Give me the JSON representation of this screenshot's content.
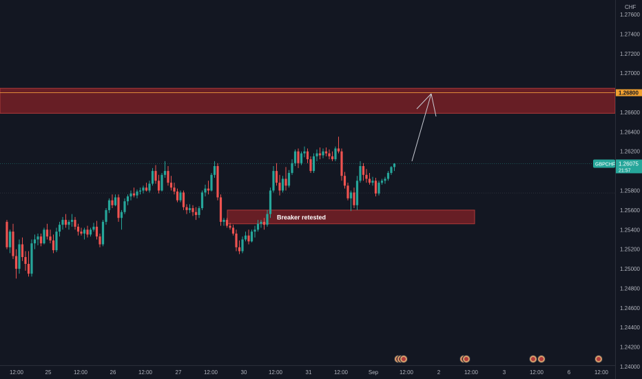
{
  "chart_data": {
    "type": "candlestick",
    "symbol": "GBPCHF",
    "currency": "CHF",
    "price_label": "1.26075",
    "countdown": "21:57",
    "resistance_label": "1.26800",
    "ylim": [
      1.24,
      1.278
    ],
    "y_ticks": [
      "1.27600",
      "1.27400",
      "1.27200",
      "1.27000",
      "1.26600",
      "1.26400",
      "1.26200",
      "1.25800",
      "1.25600",
      "1.25400",
      "1.25200",
      "1.25000",
      "1.24800",
      "1.24600",
      "1.24400",
      "1.24200",
      "1.24000"
    ],
    "x_ticks": [
      "12:00",
      "25",
      "12:00",
      "26",
      "12:00",
      "27",
      "12:00",
      "30",
      "12:00",
      "31",
      "12:00",
      "Sep",
      "12:00",
      "2",
      "12:00",
      "3",
      "12:00",
      "6",
      "12:00"
    ],
    "zones": [
      {
        "kind": "resistance",
        "low": 1.2659,
        "high": 1.26845,
        "line": 1.268
      },
      {
        "kind": "breaker",
        "low": 1.2546,
        "high": 1.256,
        "label": "Breaker retested"
      }
    ],
    "reference_lines": [
      1.26075,
      1.25775
    ],
    "projection": [
      {
        "index": 120,
        "price": 1.261
      },
      {
        "index": 132,
        "price": 1.2679
      }
    ],
    "colors": {
      "up": "#26a69a",
      "down": "#ef5350",
      "zone_fill": "#6b1f26",
      "zone_border": "#b23a3a",
      "price_tag": "#26a69a",
      "resistance_tag": "#f0a030",
      "projection": "#c9ccd4"
    },
    "candles": [
      [
        1.2548,
        1.255,
        1.252,
        1.2522
      ],
      [
        1.2522,
        1.254,
        1.2516,
        1.2538
      ],
      [
        1.2538,
        1.2546,
        1.251,
        1.2513
      ],
      [
        1.2513,
        1.252,
        1.249,
        1.25
      ],
      [
        1.25,
        1.253,
        1.2495,
        1.2525
      ],
      [
        1.2525,
        1.2532,
        1.2508,
        1.2512
      ],
      [
        1.2512,
        1.2518,
        1.2498,
        1.2505
      ],
      [
        1.2505,
        1.2518,
        1.2492,
        1.2495
      ],
      [
        1.2495,
        1.253,
        1.2492,
        1.2526
      ],
      [
        1.2526,
        1.2535,
        1.252,
        1.253
      ],
      [
        1.253,
        1.2536,
        1.2524,
        1.2533
      ],
      [
        1.2533,
        1.2536,
        1.2523,
        1.2526
      ],
      [
        1.2526,
        1.2542,
        1.2525,
        1.254
      ],
      [
        1.254,
        1.2546,
        1.253,
        1.2533
      ],
      [
        1.2533,
        1.254,
        1.2526,
        1.2529
      ],
      [
        1.2529,
        1.2535,
        1.2516,
        1.2519
      ],
      [
        1.2519,
        1.2542,
        1.2517,
        1.2538
      ],
      [
        1.2538,
        1.2548,
        1.2533,
        1.2545
      ],
      [
        1.2545,
        1.2553,
        1.254,
        1.255
      ],
      [
        1.255,
        1.2556,
        1.2542,
        1.2545
      ],
      [
        1.2545,
        1.255,
        1.254,
        1.2548
      ],
      [
        1.2548,
        1.2556,
        1.2543,
        1.255
      ],
      [
        1.255,
        1.2553,
        1.254,
        1.2543
      ],
      [
        1.2543,
        1.2546,
        1.2534,
        1.2538
      ],
      [
        1.2538,
        1.2542,
        1.2534,
        1.2536
      ],
      [
        1.2536,
        1.2542,
        1.253,
        1.254
      ],
      [
        1.254,
        1.2544,
        1.2532,
        1.2535
      ],
      [
        1.2535,
        1.2542,
        1.2533,
        1.254
      ],
      [
        1.254,
        1.2547,
        1.2538,
        1.2543
      ],
      [
        1.2543,
        1.2549,
        1.253,
        1.2533
      ],
      [
        1.2533,
        1.2536,
        1.2522,
        1.2525
      ],
      [
        1.2525,
        1.255,
        1.2523,
        1.2548
      ],
      [
        1.2548,
        1.2562,
        1.2545,
        1.256
      ],
      [
        1.256,
        1.2572,
        1.2557,
        1.257
      ],
      [
        1.257,
        1.2576,
        1.2562,
        1.2565
      ],
      [
        1.2565,
        1.2576,
        1.2564,
        1.2573
      ],
      [
        1.2573,
        1.2576,
        1.2548,
        1.2552
      ],
      [
        1.2552,
        1.256,
        1.254,
        1.2558
      ],
      [
        1.2558,
        1.2572,
        1.2556,
        1.2569
      ],
      [
        1.2569,
        1.2576,
        1.2565,
        1.2574
      ],
      [
        1.2574,
        1.258,
        1.257,
        1.2577
      ],
      [
        1.2577,
        1.2583,
        1.2573,
        1.2575
      ],
      [
        1.2575,
        1.2581,
        1.2572,
        1.2579
      ],
      [
        1.2579,
        1.2583,
        1.2576,
        1.258
      ],
      [
        1.258,
        1.2585,
        1.2577,
        1.2583
      ],
      [
        1.2583,
        1.2588,
        1.2579,
        1.258
      ],
      [
        1.258,
        1.259,
        1.2578,
        1.2587
      ],
      [
        1.2587,
        1.2603,
        1.2585,
        1.26
      ],
      [
        1.26,
        1.2606,
        1.2587,
        1.259
      ],
      [
        1.259,
        1.2596,
        1.2577,
        1.258
      ],
      [
        1.258,
        1.2598,
        1.2579,
        1.2596
      ],
      [
        1.2596,
        1.261,
        1.2593,
        1.26
      ],
      [
        1.26,
        1.2605,
        1.2585,
        1.2588
      ],
      [
        1.2588,
        1.2595,
        1.258,
        1.2583
      ],
      [
        1.2583,
        1.2588,
        1.2576,
        1.2579
      ],
      [
        1.2579,
        1.2582,
        1.2568,
        1.257
      ],
      [
        1.257,
        1.258,
        1.2568,
        1.2578
      ],
      [
        1.2578,
        1.258,
        1.256,
        1.2563
      ],
      [
        1.2563,
        1.2566,
        1.2556,
        1.256
      ],
      [
        1.256,
        1.2566,
        1.2557,
        1.2562
      ],
      [
        1.2562,
        1.2565,
        1.2554,
        1.2558
      ],
      [
        1.2558,
        1.2563,
        1.255,
        1.2555
      ],
      [
        1.2555,
        1.2564,
        1.2552,
        1.2562
      ],
      [
        1.2562,
        1.258,
        1.256,
        1.2578
      ],
      [
        1.2578,
        1.2586,
        1.2574,
        1.2582
      ],
      [
        1.2582,
        1.259,
        1.2576,
        1.258
      ],
      [
        1.258,
        1.2598,
        1.2579,
        1.2596
      ],
      [
        1.2596,
        1.261,
        1.2593,
        1.2605
      ],
      [
        1.2605,
        1.2608,
        1.257,
        1.2573
      ],
      [
        1.2573,
        1.2576,
        1.2544,
        1.2548
      ],
      [
        1.2548,
        1.2552,
        1.2544,
        1.255
      ],
      [
        1.255,
        1.2552,
        1.2542,
        1.2544
      ],
      [
        1.2544,
        1.2547,
        1.254,
        1.2542
      ],
      [
        1.2542,
        1.2545,
        1.2534,
        1.2536
      ],
      [
        1.2536,
        1.254,
        1.2518,
        1.2522
      ],
      [
        1.2522,
        1.2529,
        1.2515,
        1.2518
      ],
      [
        1.2518,
        1.2533,
        1.2516,
        1.253
      ],
      [
        1.253,
        1.2538,
        1.2528,
        1.2534
      ],
      [
        1.2534,
        1.254,
        1.2525,
        1.2528
      ],
      [
        1.2528,
        1.254,
        1.2527,
        1.2538
      ],
      [
        1.2538,
        1.2544,
        1.2532,
        1.254
      ],
      [
        1.254,
        1.255,
        1.2538,
        1.2546
      ],
      [
        1.2546,
        1.255,
        1.2542,
        1.2548
      ],
      [
        1.2548,
        1.2552,
        1.254,
        1.2545
      ],
      [
        1.2545,
        1.256,
        1.2543,
        1.2556
      ],
      [
        1.2556,
        1.2583,
        1.2552,
        1.258
      ],
      [
        1.258,
        1.2605,
        1.2578,
        1.26
      ],
      [
        1.26,
        1.2608,
        1.2585,
        1.2588
      ],
      [
        1.2588,
        1.2596,
        1.2575,
        1.258
      ],
      [
        1.258,
        1.2595,
        1.2578,
        1.2592
      ],
      [
        1.2592,
        1.2604,
        1.258,
        1.2585
      ],
      [
        1.2585,
        1.2601,
        1.2583,
        1.2598
      ],
      [
        1.2598,
        1.2612,
        1.2596,
        1.2608
      ],
      [
        1.2608,
        1.2622,
        1.2605,
        1.262
      ],
      [
        1.262,
        1.2623,
        1.2603,
        1.2608
      ],
      [
        1.2608,
        1.262,
        1.2606,
        1.2618
      ],
      [
        1.2618,
        1.2625,
        1.2614,
        1.262
      ],
      [
        1.262,
        1.2623,
        1.2608,
        1.2612
      ],
      [
        1.2612,
        1.2615,
        1.2598,
        1.26
      ],
      [
        1.26,
        1.2618,
        1.2598,
        1.2615
      ],
      [
        1.2615,
        1.2622,
        1.261,
        1.2618
      ],
      [
        1.2618,
        1.2624,
        1.2612,
        1.2616
      ],
      [
        1.2616,
        1.2623,
        1.2613,
        1.262
      ],
      [
        1.262,
        1.2624,
        1.2615,
        1.2618
      ],
      [
        1.2618,
        1.2622,
        1.2612,
        1.2615
      ],
      [
        1.2615,
        1.262,
        1.261,
        1.2612
      ],
      [
        1.2612,
        1.2625,
        1.261,
        1.2623
      ],
      [
        1.2623,
        1.2635,
        1.2618,
        1.262
      ],
      [
        1.262,
        1.2623,
        1.259,
        1.2595
      ],
      [
        1.2595,
        1.2599,
        1.2582,
        1.2585
      ],
      [
        1.2585,
        1.2588,
        1.257,
        1.2572
      ],
      [
        1.2572,
        1.258,
        1.2559,
        1.2578
      ],
      [
        1.2578,
        1.2583,
        1.2562,
        1.2565
      ],
      [
        1.2565,
        1.2595,
        1.256,
        1.259
      ],
      [
        1.259,
        1.261,
        1.2588,
        1.2605
      ],
      [
        1.2605,
        1.2608,
        1.259,
        1.2596
      ],
      [
        1.2596,
        1.2602,
        1.2588,
        1.2592
      ],
      [
        1.2592,
        1.2598,
        1.2586,
        1.2588
      ],
      [
        1.2588,
        1.2594,
        1.2585,
        1.259
      ],
      [
        1.259,
        1.2593,
        1.2574,
        1.2577
      ],
      [
        1.2577,
        1.259,
        1.2575,
        1.2588
      ],
      [
        1.2588,
        1.2592,
        1.2586,
        1.259
      ],
      [
        1.259,
        1.2594,
        1.2587,
        1.2592
      ],
      [
        1.2592,
        1.26,
        1.259,
        1.2598
      ],
      [
        1.2598,
        1.2605,
        1.2596,
        1.2604
      ],
      [
        1.2604,
        1.2608,
        1.26,
        1.26075
      ]
    ]
  }
}
